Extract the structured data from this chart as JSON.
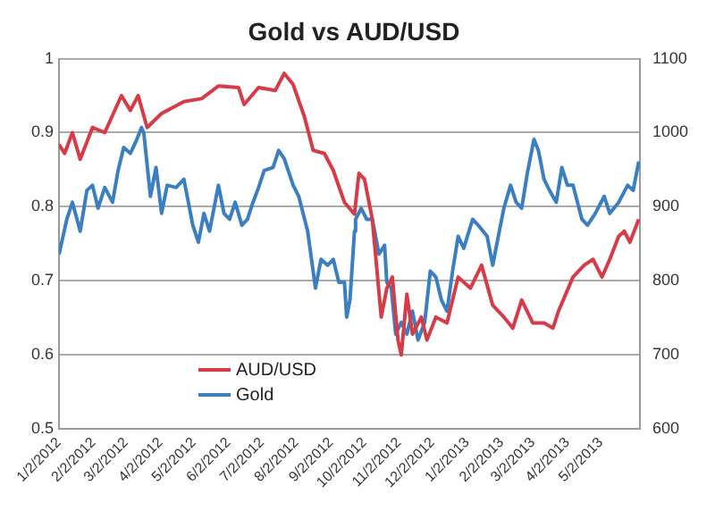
{
  "chart_data": {
    "type": "line",
    "title": "Gold vs AUD/USD",
    "xlim": [
      "2012-01-02",
      "2013-06-06"
    ],
    "xticks": [
      {
        "value": "2012-01-02",
        "label": "1/2/2012"
      },
      {
        "value": "2012-02-02",
        "label": "2/2/2012"
      },
      {
        "value": "2012-03-02",
        "label": "3/2/2012"
      },
      {
        "value": "2012-04-02",
        "label": "4/2/2012"
      },
      {
        "value": "2012-05-02",
        "label": "5/2/2012"
      },
      {
        "value": "2012-06-02",
        "label": "6/2/2012"
      },
      {
        "value": "2012-07-02",
        "label": "7/2/2012"
      },
      {
        "value": "2012-08-02",
        "label": "8/2/2012"
      },
      {
        "value": "2012-09-02",
        "label": "9/2/2012"
      },
      {
        "value": "2012-10-02",
        "label": "10/2/2012"
      },
      {
        "value": "2012-11-02",
        "label": "11/2/2012"
      },
      {
        "value": "2012-12-02",
        "label": "12/2/2012"
      },
      {
        "value": "2013-01-02",
        "label": "1/2/2013"
      },
      {
        "value": "2013-02-02",
        "label": "2/2/2013"
      },
      {
        "value": "2013-03-02",
        "label": "3/2/2013"
      },
      {
        "value": "2013-04-02",
        "label": "4/2/2013"
      },
      {
        "value": "2013-05-02",
        "label": "5/2/2013"
      }
    ],
    "ylim": [
      0.5,
      1
    ],
    "yticks": [
      0.5,
      0.6,
      0.7,
      0.8,
      0.9,
      1
    ],
    "y2lim": [
      600,
      1100
    ],
    "y2ticks": [
      600,
      700,
      800,
      900,
      1000,
      1100
    ],
    "grid": "y",
    "legend": "bottom left",
    "marker": "none",
    "line_style": "solid",
    "series": [
      {
        "name": "AUD/USD",
        "color": "#d63c48",
        "x": [
          "2012-01-02",
          "2012-01-07",
          "2012-01-14",
          "2012-01-21",
          "2012-02-01",
          "2012-02-12",
          "2012-02-27",
          "2012-03-06",
          "2012-03-13",
          "2012-03-21",
          "2012-04-03",
          "2012-04-23",
          "2012-05-09",
          "2012-05-24",
          "2012-06-11",
          "2012-06-16",
          "2012-06-29",
          "2012-07-14",
          "2012-07-22",
          "2012-07-30",
          "2012-08-09",
          "2012-08-17",
          "2012-08-27",
          "2012-09-04",
          "2012-09-14",
          "2012-09-23",
          "2012-09-27",
          "2012-10-02",
          "2012-10-09",
          "2012-10-17",
          "2012-10-22",
          "2012-10-27",
          "2012-11-01",
          "2012-11-04",
          "2012-11-09",
          "2012-11-14",
          "2012-11-22",
          "2012-11-27",
          "2012-12-05",
          "2012-12-15",
          "2012-12-25",
          "2013-01-05",
          "2013-01-15",
          "2013-01-25",
          "2013-02-04",
          "2013-02-12",
          "2013-02-20",
          "2013-03-02",
          "2013-03-12",
          "2013-03-20",
          "2013-03-25",
          "2013-04-07",
          "2013-04-17",
          "2013-04-25",
          "2013-05-03",
          "2013-05-10",
          "2013-05-18",
          "2013-05-23",
          "2013-05-28",
          "2013-06-05"
        ],
        "values": [
          0.884,
          0.872,
          0.9,
          0.864,
          0.907,
          0.9,
          0.95,
          0.93,
          0.95,
          0.907,
          0.926,
          0.942,
          0.946,
          0.963,
          0.961,
          0.938,
          0.961,
          0.957,
          0.98,
          0.965,
          0.922,
          0.876,
          0.872,
          0.849,
          0.806,
          0.79,
          0.845,
          0.837,
          0.783,
          0.651,
          0.69,
          0.705,
          0.62,
          0.6,
          0.682,
          0.628,
          0.651,
          0.62,
          0.651,
          0.643,
          0.705,
          0.69,
          0.721,
          0.667,
          0.651,
          0.636,
          0.674,
          0.643,
          0.643,
          0.636,
          0.659,
          0.705,
          0.721,
          0.729,
          0.705,
          0.729,
          0.76,
          0.767,
          0.752,
          0.783
        ]
      },
      {
        "name": "Gold",
        "color": "#3b7fc1",
        "axis": "y2",
        "x": [
          "2012-01-02",
          "2012-01-09",
          "2012-01-14",
          "2012-01-21",
          "2012-01-27",
          "2012-02-01",
          "2012-02-06",
          "2012-02-12",
          "2012-02-19",
          "2012-02-24",
          "2012-02-29",
          "2012-03-06",
          "2012-03-11",
          "2012-03-16",
          "2012-03-18",
          "2012-03-24",
          "2012-03-29",
          "2012-04-03",
          "2012-04-08",
          "2012-04-16",
          "2012-04-23",
          "2012-05-01",
          "2012-05-06",
          "2012-05-11",
          "2012-05-16",
          "2012-05-24",
          "2012-05-29",
          "2012-06-03",
          "2012-06-08",
          "2012-06-14",
          "2012-06-19",
          "2012-06-24",
          "2012-06-29",
          "2012-07-04",
          "2012-07-12",
          "2012-07-17",
          "2012-07-22",
          "2012-07-30",
          "2012-08-04",
          "2012-08-12",
          "2012-08-19",
          "2012-08-24",
          "2012-08-30",
          "2012-09-04",
          "2012-09-09",
          "2012-09-14",
          "2012-09-16",
          "2012-09-19",
          "2012-09-23",
          "2012-09-24",
          "2012-09-29",
          "2012-10-04",
          "2012-10-09",
          "2012-10-15",
          "2012-10-20",
          "2012-10-22",
          "2012-10-26",
          "2012-10-30",
          "2012-11-04",
          "2012-11-09",
          "2012-11-14",
          "2012-11-19",
          "2012-11-25",
          "2012-11-30",
          "2012-12-05",
          "2012-12-10",
          "2012-12-15",
          "2012-12-20",
          "2012-12-25",
          "2012-12-30",
          "2013-01-07",
          "2013-01-12",
          "2013-01-20",
          "2013-01-25",
          "2013-01-30",
          "2013-02-04",
          "2013-02-10",
          "2013-02-15",
          "2013-02-20",
          "2013-02-25",
          "2013-03-03",
          "2013-03-07",
          "2013-03-12",
          "2013-03-17",
          "2013-03-23",
          "2013-03-28",
          "2013-04-02",
          "2013-04-07",
          "2013-04-15",
          "2013-04-20",
          "2013-04-27",
          "2013-05-05",
          "2013-05-10",
          "2013-05-18",
          "2013-05-26",
          "2013-05-31",
          "2013-06-05"
        ],
        "values": [
          836,
          883,
          906,
          867,
          922,
          929,
          898,
          926,
          906,
          949,
          980,
          972,
          988,
          1007,
          1000,
          914,
          953,
          891,
          929,
          926,
          937,
          875,
          852,
          891,
          867,
          929,
          891,
          883,
          906,
          875,
          883,
          906,
          926,
          949,
          953,
          976,
          965,
          929,
          914,
          867,
          790,
          829,
          821,
          829,
          798,
          798,
          751,
          775,
          867,
          883,
          898,
          883,
          883,
          836,
          848,
          798,
          790,
          728,
          744,
          728,
          759,
          720,
          744,
          813,
          805,
          774,
          759,
          813,
          860,
          844,
          883,
          875,
          860,
          821,
          860,
          898,
          929,
          906,
          898,
          945,
          991,
          976,
          937,
          922,
          906,
          953,
          929,
          929,
          883,
          875,
          891,
          914,
          891,
          906,
          929,
          922,
          961
        ]
      }
    ]
  }
}
